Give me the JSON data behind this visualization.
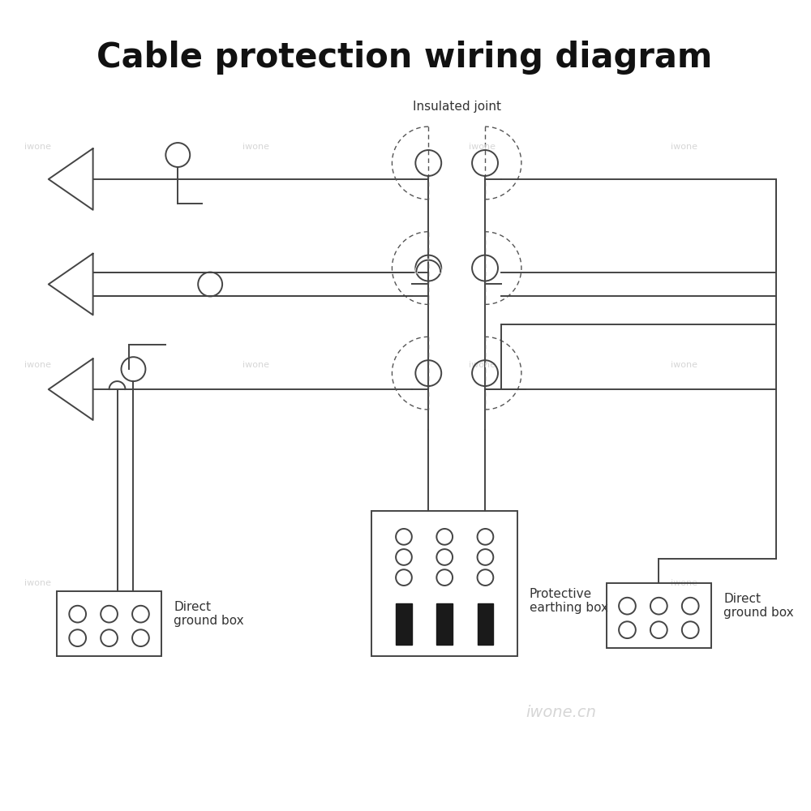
{
  "title": "Cable protection wiring diagram",
  "title_fontsize": 30,
  "title_fontweight": "bold",
  "bg_color": "#ffffff",
  "line_color": "#444444",
  "dashed_color": "#555555",
  "watermark_color": "#cccccc",
  "label_insulated_joint": "Insulated joint",
  "label_direct_ground_box_left": "Direct\nground box",
  "label_direct_ground_box_right": "Direct\nground box",
  "label_protective_earthing_box": "Protective\nearthing box",
  "label_iwone_cn": "iwone.cn"
}
